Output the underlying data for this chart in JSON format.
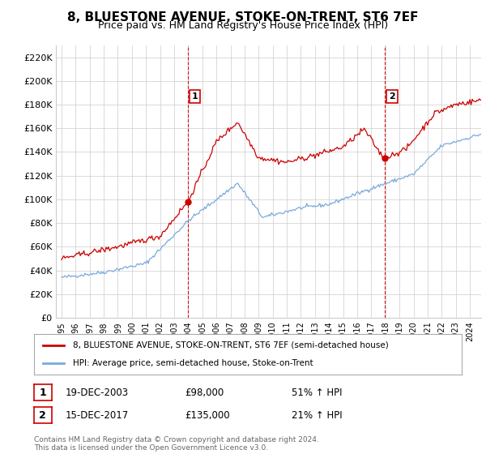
{
  "title": "8, BLUESTONE AVENUE, STOKE-ON-TRENT, ST6 7EF",
  "subtitle": "Price paid vs. HM Land Registry's House Price Index (HPI)",
  "ylim": [
    0,
    230000
  ],
  "yticks": [
    0,
    20000,
    40000,
    60000,
    80000,
    100000,
    120000,
    140000,
    160000,
    180000,
    200000,
    220000
  ],
  "xlim_start": 1994.6,
  "xlim_end": 2024.8,
  "transaction1": {
    "date_num": 2003.97,
    "price": 98000,
    "label": "1",
    "date_str": "19-DEC-2003",
    "price_str": "£98,000",
    "pct": "51% ↑ HPI"
  },
  "transaction2": {
    "date_num": 2017.97,
    "price": 135000,
    "label": "2",
    "date_str": "15-DEC-2017",
    "price_str": "£135,000",
    "pct": "21% ↑ HPI"
  },
  "legend_line1": "8, BLUESTONE AVENUE, STOKE-ON-TRENT, ST6 7EF (semi-detached house)",
  "legend_line2": "HPI: Average price, semi-detached house, Stoke-on-Trent",
  "footnote": "Contains HM Land Registry data © Crown copyright and database right 2024.\nThis data is licensed under the Open Government Licence v3.0.",
  "house_color": "#cc0000",
  "hpi_color": "#7aaadd",
  "vline_color": "#cc0000",
  "background_color": "#ffffff",
  "grid_color": "#cccccc",
  "title_fontsize": 11,
  "subtitle_fontsize": 9
}
